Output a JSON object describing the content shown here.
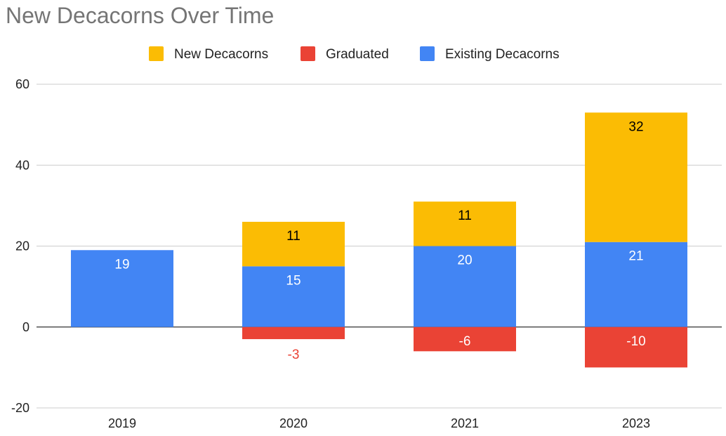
{
  "chart_data": {
    "type": "bar",
    "stacked": true,
    "title": "New Decacorns Over Time",
    "xlabel": "",
    "ylabel": "",
    "categories": [
      "2019",
      "2020",
      "2021",
      "2023"
    ],
    "series": [
      {
        "name": "New Decacorns",
        "color": "#FBBC04",
        "label_color": "#000000",
        "values": [
          0,
          11,
          11,
          32
        ]
      },
      {
        "name": "Graduated",
        "color": "#EA4335",
        "label_color": "#FFFFFF",
        "values": [
          0,
          -3,
          -6,
          -10
        ]
      },
      {
        "name": "Existing Decacorns",
        "color": "#4285F4",
        "label_color": "#FFFFFF",
        "values": [
          19,
          15,
          20,
          21
        ]
      }
    ],
    "ylim": [
      -20,
      60
    ],
    "yticks": [
      "-20",
      "0",
      "20",
      "40",
      "60"
    ],
    "grid": true,
    "legend_position": "top"
  }
}
